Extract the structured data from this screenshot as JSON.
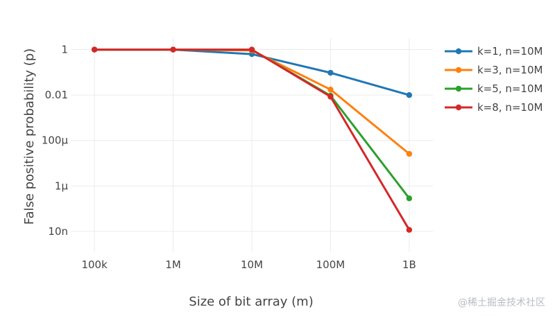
{
  "chart_data": {
    "type": "line",
    "xlabel": "Size of bit array (m)",
    "ylabel": "False positive probability (p)",
    "x_scale": "log",
    "y_scale": "log",
    "x": [
      100000,
      1000000,
      10000000,
      100000000,
      1000000000
    ],
    "x_tick_labels": [
      "100k",
      "1M",
      "10M",
      "100M",
      "1B"
    ],
    "y_ticks": [
      1,
      0.01,
      0.0001,
      1e-06,
      1e-08
    ],
    "y_tick_labels": [
      "1",
      "0.01",
      "100μ",
      "1μ",
      "10n"
    ],
    "xlim": [
      50000,
      2000000000
    ],
    "ylim": [
      1.2e-09,
      3.2
    ],
    "grid": true,
    "legend_position": "right",
    "series": [
      {
        "name": "k=1, n=10M",
        "color": "#1f77b4",
        "values": [
          1.0,
          0.99995,
          0.632,
          0.0952,
          0.00995
        ]
      },
      {
        "name": "k=3, n=10M",
        "color": "#ff7f0e",
        "values": [
          1.0,
          1.0,
          0.919,
          0.0174,
          2.57e-05
        ]
      },
      {
        "name": "k=5, n=10M",
        "color": "#2ca02c",
        "values": [
          1.0,
          1.0,
          0.9934,
          0.00943,
          2.83e-07
        ]
      },
      {
        "name": "k=8, n=10M",
        "color": "#d62728",
        "values": [
          1.0,
          1.0,
          0.99999,
          0.00846,
          1.16e-08
        ]
      }
    ]
  },
  "watermark": "@稀土掘金技术社区"
}
